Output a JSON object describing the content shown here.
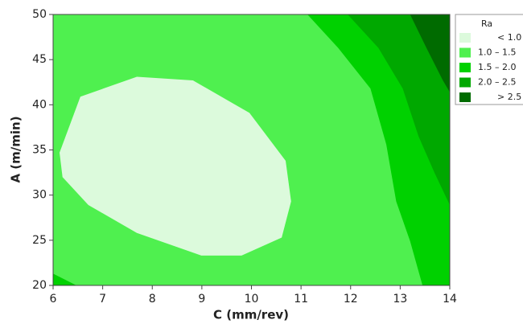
{
  "chart_data": {
    "type": "contour",
    "x_label": "C (mm/rev)",
    "y_label": "A (m/min)",
    "legend_title": "Ra",
    "xlim": [
      6,
      14
    ],
    "ylim": [
      20,
      50
    ],
    "xticks": [
      6,
      7,
      8,
      9,
      10,
      11,
      12,
      13,
      14
    ],
    "yticks": [
      20,
      25,
      30,
      35,
      40,
      45,
      50
    ],
    "legend_position": "outside right",
    "series": [
      {
        "name": "< 1.0",
        "color": "#dcfadc",
        "x": [
          6.13,
          6.55,
          7.69,
          8.82,
          9.96,
          10.69,
          10.8,
          10.61,
          9.8,
          8.99,
          7.69,
          6.71,
          6.19
        ],
        "y": [
          34.7,
          40.9,
          43.1,
          42.7,
          39.1,
          33.8,
          29.3,
          25.3,
          23.3,
          23.3,
          25.8,
          28.9,
          32.0
        ]
      },
      {
        "name": "1.0 – 1.5",
        "color": "#4ff04f",
        "x": [
          6,
          14,
          14,
          6
        ],
        "y": [
          20,
          20,
          50,
          50
        ]
      },
      {
        "name": "1.5 – 2.0",
        "color": "#00d100",
        "x": [
          11.13,
          11.75,
          12.4,
          12.72,
          12.92,
          13.2,
          13.45,
          14,
          14
        ],
        "y": [
          50,
          46.3,
          41.8,
          35.6,
          29.3,
          24.9,
          20,
          20,
          50
        ]
      },
      {
        "name": "2.0 – 2.5",
        "color": "#00a800",
        "x": [
          11.94,
          12.56,
          13.05,
          13.37,
          13.69,
          14,
          14
        ],
        "y": [
          50,
          46.3,
          41.8,
          36.5,
          32.5,
          28.9,
          50
        ]
      },
      {
        "name": "> 2.5",
        "color": "#006b00",
        "x": [
          13.2,
          13.53,
          13.86,
          14,
          14
        ],
        "y": [
          50,
          46.3,
          42.7,
          41.4,
          50
        ]
      }
    ],
    "corner_region": {
      "series": 2,
      "x": [
        6,
        6.47,
        6
      ],
      "y": [
        21.3,
        20,
        20
      ]
    }
  }
}
